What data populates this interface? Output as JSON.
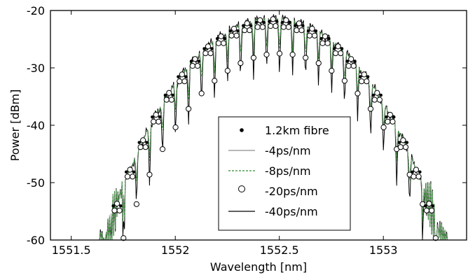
{
  "chart_data": {
    "type": "line",
    "title": "",
    "xlabel": "Wavelength [nm]",
    "ylabel": "Power [dBm]",
    "xlim": [
      1551.4,
      1553.4
    ],
    "ylim": [
      -60,
      -20
    ],
    "xticks": [
      1551.5,
      1552,
      1552.5,
      1553
    ],
    "xtick_labels": [
      "1551.5",
      "1552",
      "1552.5",
      "1553"
    ],
    "yticks": [
      -60,
      -50,
      -40,
      -30,
      -20
    ],
    "ytick_labels": [
      "-60",
      "-50",
      "-40",
      "-30",
      "-20"
    ],
    "grid": false,
    "legend_position": "lower-center",
    "comb": {
      "center": 1552.47,
      "peak_power": -21.5,
      "line_spacing": 0.0625,
      "dip_depth_dB": 4.5
    },
    "series": [
      {
        "name": "1.2km fibre",
        "style": "dots",
        "color": "#000000"
      },
      {
        "name": "-4ps/nm",
        "style": "solid",
        "color": "#8c8c8c"
      },
      {
        "name": "-8ps/nm",
        "style": "dashed",
        "color": "#2e8b2e"
      },
      {
        "name": "-20ps/nm",
        "style": "circles",
        "color": "#000000"
      },
      {
        "name": "-40ps/nm",
        "style": "solid",
        "color": "#000000"
      }
    ]
  }
}
